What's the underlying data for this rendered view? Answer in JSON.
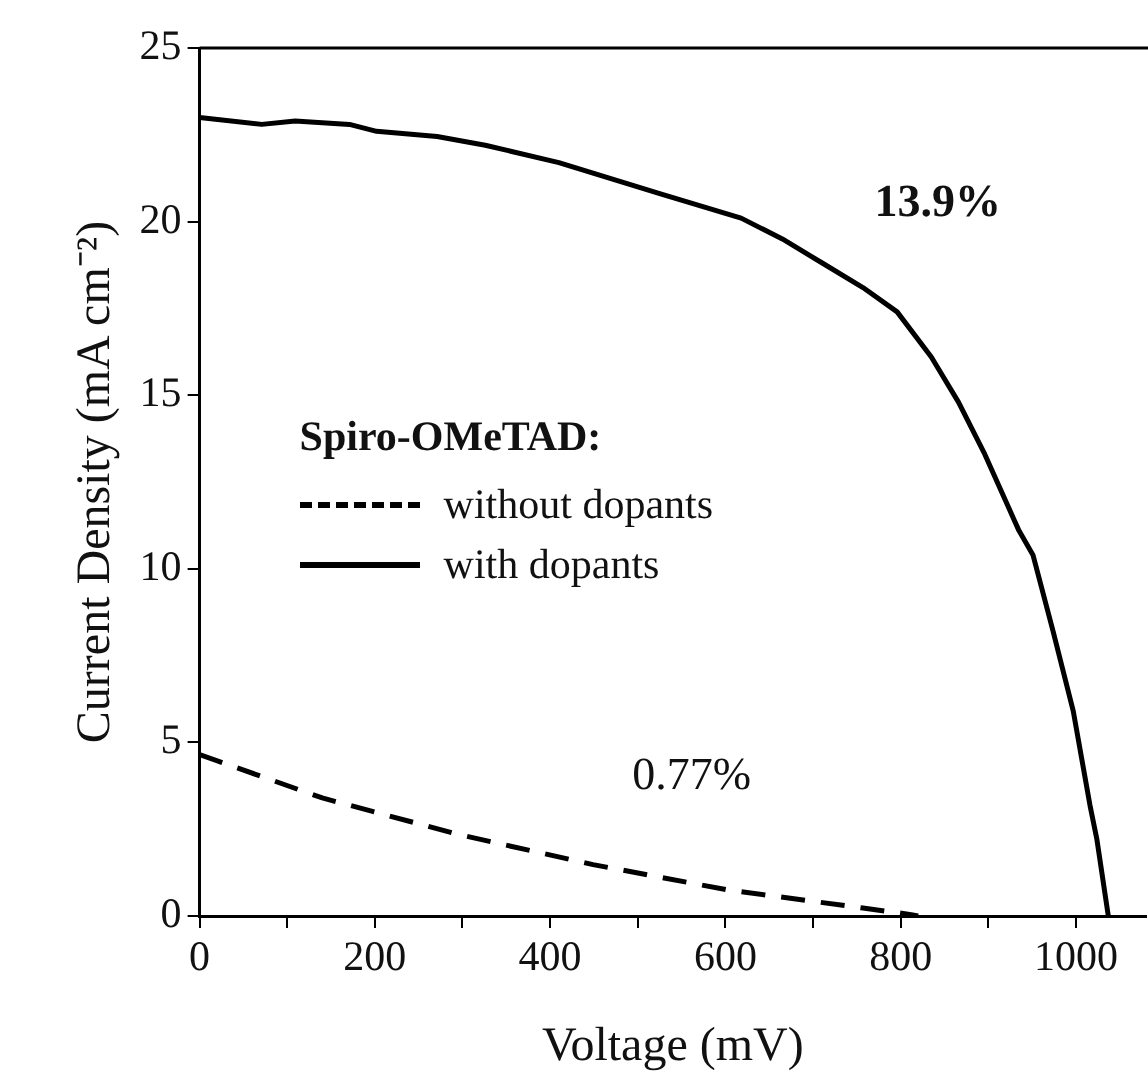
{
  "chart_data": {
    "type": "line",
    "xlabel": "Voltage (mV)",
    "ylabel": "Current Density (mA cm⁻²)",
    "legend_title": "Spiro-OMeTAD:",
    "legend": "left",
    "grid": false,
    "marker": "none",
    "xlim": [
      0,
      1080
    ],
    "xticks": [
      0,
      {
        "value": 100,
        "label": null
      },
      200,
      {
        "value": 300,
        "label": null
      },
      400,
      {
        "value": 500,
        "label": null
      },
      600,
      {
        "value": 700,
        "label": null
      },
      800,
      {
        "value": 900,
        "label": null
      },
      1000
    ],
    "ylim": [
      0,
      25
    ],
    "yticks": [
      0,
      5,
      10,
      15,
      20,
      25
    ],
    "series": [
      {
        "name": "without dopants",
        "color": "#000000",
        "line_style": "dashed",
        "x": [
          0,
          140,
          295,
          449,
          603,
          757,
          812,
          820
        ],
        "values": [
          4.65,
          3.4,
          2.35,
          1.48,
          0.75,
          0.23,
          0.04,
          0
        ]
      },
      {
        "name": "with dopants",
        "color": "#000000",
        "line_style": "solid",
        "x": [
          0,
          71,
          109,
          171,
          202,
          271,
          326,
          410,
          526,
          618,
          665,
          711,
          757,
          796,
          835,
          866,
          896,
          935,
          951,
          974,
          997,
          1016,
          1024,
          1037
        ],
        "values": [
          23.0,
          22.8,
          22.9,
          22.8,
          22.6,
          22.45,
          22.2,
          21.7,
          20.8,
          20.1,
          19.5,
          18.8,
          18.1,
          17.4,
          16.1,
          14.8,
          13.3,
          11.1,
          10.4,
          8.2,
          5.9,
          3.2,
          2.2,
          0
        ]
      }
    ],
    "annotations": [
      "13.9%",
      "0.77%"
    ]
  }
}
